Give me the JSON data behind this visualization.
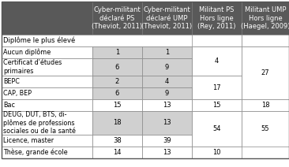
{
  "col_headers": [
    "Cyber-militant\ndéclaré PS\n(Theviot, 2011)",
    "Cyber-militant\ndéclaré UMP\n(Theviot, 2011)",
    "Militant PS\nHors ligne\n(Rey, 2011)",
    "Militant UMP\nHors ligne\n(Haegel, 2009)"
  ],
  "row_labels": [
    "Diplôme le plus élevé",
    "Aucun diplôme",
    "Certificat d'études\nprimaires",
    "BEPC",
    "CAP, BEP",
    "Bac",
    "DEUG, DUT, BTS, di-\nplômes de professions\nsociales ou de la santé",
    "Licence, master",
    "Thèse, grande école"
  ],
  "header_bg": "#595959",
  "header_fg": "#ffffff",
  "gray_bg": "#d0d0d0",
  "white_bg": "#ffffff",
  "border_color": "#888888",
  "font_size": 6.0,
  "header_font_size": 6.0
}
